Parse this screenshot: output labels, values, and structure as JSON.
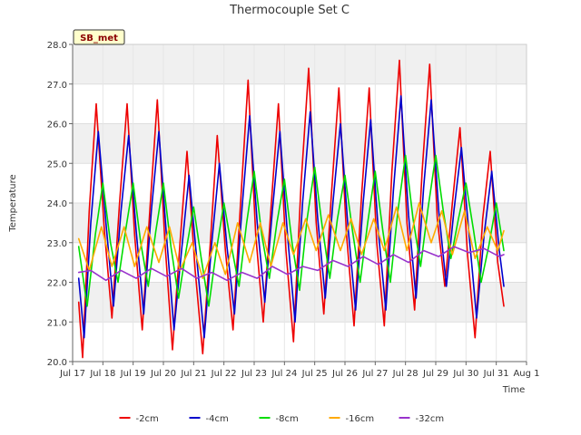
{
  "chart_data": {
    "type": "line",
    "title": "Thermocouple Set C",
    "xlabel": "Time",
    "ylabel": "Temperature",
    "badge": "SB_met",
    "xlim": [
      0,
      15
    ],
    "ylim": [
      20.0,
      28.0
    ],
    "x_ticks": [
      {
        "x": 0,
        "label": "Jul 17"
      },
      {
        "x": 1,
        "label": "Jul 18"
      },
      {
        "x": 2,
        "label": "Jul 19"
      },
      {
        "x": 3,
        "label": "Jul 20"
      },
      {
        "x": 4,
        "label": "Jul 21"
      },
      {
        "x": 5,
        "label": "Jul 22"
      },
      {
        "x": 6,
        "label": "Jul 23"
      },
      {
        "x": 7,
        "label": "Jul 24"
      },
      {
        "x": 8,
        "label": "Jul 25"
      },
      {
        "x": 9,
        "label": "Jul 26"
      },
      {
        "x": 10,
        "label": "Jul 27"
      },
      {
        "x": 11,
        "label": "Jul 28"
      },
      {
        "x": 12,
        "label": "Jul 29"
      },
      {
        "x": 13,
        "label": "Jul 30"
      },
      {
        "x": 14,
        "label": "Jul 31"
      },
      {
        "x": 15,
        "label": "Aug 1"
      }
    ],
    "y_ticks": [
      {
        "y": 20.0,
        "label": "20.0"
      },
      {
        "y": 21.0,
        "label": "21.0"
      },
      {
        "y": 22.0,
        "label": "22.0"
      },
      {
        "y": 23.0,
        "label": "23.0"
      },
      {
        "y": 24.0,
        "label": "24.0"
      },
      {
        "y": 25.0,
        "label": "25.0"
      },
      {
        "y": 26.0,
        "label": "26.0"
      },
      {
        "y": 27.0,
        "label": "27.0"
      },
      {
        "y": 28.0,
        "label": "28.0"
      }
    ],
    "grid": true,
    "legend_position": "bottom",
    "series": [
      {
        "name": "-2cm",
        "color": "#ee0000",
        "x": [
          0.2,
          0.33,
          0.55,
          0.78,
          1.05,
          1.3,
          1.55,
          1.8,
          2.05,
          2.3,
          2.55,
          2.8,
          3.05,
          3.3,
          3.55,
          3.78,
          4.05,
          4.3,
          4.55,
          4.78,
          5.05,
          5.3,
          5.55,
          5.8,
          6.05,
          6.3,
          6.55,
          6.8,
          7.05,
          7.3,
          7.55,
          7.8,
          8.05,
          8.3,
          8.55,
          8.8,
          9.05,
          9.3,
          9.55,
          9.8,
          10.05,
          10.3,
          10.55,
          10.8,
          11.05,
          11.3,
          11.55,
          11.8,
          12.05,
          12.3,
          12.55,
          12.8,
          13.05,
          13.3,
          13.55,
          13.8,
          14.05,
          14.25
        ],
        "y": [
          21.5,
          20.1,
          23.8,
          26.5,
          23.3,
          21.1,
          24.0,
          26.5,
          23.2,
          20.8,
          23.8,
          26.6,
          23.0,
          20.3,
          23.0,
          25.3,
          22.3,
          20.2,
          23.0,
          25.7,
          22.8,
          20.8,
          24.0,
          27.1,
          23.2,
          21.0,
          23.8,
          26.5,
          22.8,
          20.5,
          24.5,
          27.4,
          23.5,
          21.2,
          24.2,
          26.9,
          23.2,
          20.9,
          24.2,
          26.9,
          23.0,
          20.9,
          24.8,
          27.6,
          23.5,
          21.3,
          24.8,
          27.5,
          23.6,
          21.9,
          24.0,
          25.9,
          22.7,
          20.6,
          23.6,
          25.3,
          22.5,
          21.4
        ]
      },
      {
        "name": "-4cm",
        "color": "#0000cc",
        "x": [
          0.2,
          0.38,
          0.6,
          0.85,
          1.1,
          1.35,
          1.6,
          1.85,
          2.1,
          2.35,
          2.6,
          2.85,
          3.1,
          3.35,
          3.6,
          3.85,
          4.1,
          4.35,
          4.6,
          4.85,
          5.1,
          5.35,
          5.6,
          5.85,
          6.1,
          6.35,
          6.6,
          6.85,
          7.1,
          7.35,
          7.6,
          7.85,
          8.1,
          8.35,
          8.6,
          8.85,
          9.1,
          9.35,
          9.6,
          9.85,
          10.1,
          10.35,
          10.6,
          10.85,
          11.1,
          11.35,
          11.6,
          11.85,
          12.1,
          12.35,
          12.6,
          12.85,
          13.1,
          13.35,
          13.6,
          13.85,
          14.1,
          14.25
        ],
        "y": [
          22.1,
          20.6,
          23.5,
          25.8,
          23.5,
          21.4,
          23.8,
          25.7,
          23.3,
          21.2,
          23.8,
          25.8,
          23.2,
          20.8,
          22.8,
          24.7,
          22.6,
          20.6,
          23.0,
          25.0,
          22.9,
          21.2,
          23.9,
          26.2,
          23.5,
          21.5,
          23.8,
          25.8,
          23.2,
          21.0,
          24.0,
          26.3,
          23.6,
          21.6,
          24.0,
          26.0,
          23.4,
          21.3,
          24.0,
          26.1,
          23.3,
          21.3,
          24.3,
          26.7,
          23.7,
          21.6,
          24.4,
          26.6,
          23.8,
          21.9,
          23.8,
          25.4,
          23.2,
          21.1,
          23.2,
          24.8,
          22.8,
          21.9
        ]
      },
      {
        "name": "-8cm",
        "color": "#00dd00",
        "x": [
          0.2,
          0.48,
          0.75,
          1.0,
          1.25,
          1.5,
          1.75,
          2.0,
          2.25,
          2.5,
          2.75,
          3.0,
          3.25,
          3.5,
          3.75,
          4.0,
          4.25,
          4.5,
          4.75,
          5.0,
          5.25,
          5.5,
          5.75,
          6.0,
          6.25,
          6.5,
          6.75,
          7.0,
          7.25,
          7.5,
          7.75,
          8.0,
          8.25,
          8.5,
          8.75,
          9.0,
          9.25,
          9.5,
          9.75,
          10.0,
          10.25,
          10.5,
          10.75,
          11.0,
          11.25,
          11.5,
          11.75,
          12.0,
          12.25,
          12.5,
          12.75,
          13.0,
          13.25,
          13.5,
          13.75,
          14.0,
          14.25
        ],
        "y": [
          22.9,
          21.4,
          23.2,
          24.5,
          23.0,
          22.0,
          23.3,
          24.5,
          23.0,
          21.9,
          23.3,
          24.5,
          22.9,
          21.6,
          22.8,
          23.9,
          22.6,
          21.4,
          22.8,
          24.0,
          22.9,
          21.9,
          23.5,
          24.8,
          23.2,
          22.1,
          23.5,
          24.6,
          23.0,
          21.8,
          23.6,
          24.9,
          23.4,
          22.1,
          23.6,
          24.7,
          23.3,
          22.0,
          23.5,
          24.8,
          23.3,
          22.0,
          23.8,
          25.2,
          23.6,
          22.4,
          23.9,
          25.2,
          23.8,
          22.6,
          23.6,
          24.5,
          23.3,
          22.0,
          22.9,
          24.0,
          22.8
        ]
      },
      {
        "name": "-16cm",
        "color": "#ffaa00",
        "x": [
          0.2,
          0.55,
          0.95,
          1.3,
          1.7,
          2.05,
          2.45,
          2.85,
          3.2,
          3.55,
          3.95,
          4.3,
          4.7,
          5.05,
          5.45,
          5.85,
          6.2,
          6.55,
          6.95,
          7.3,
          7.7,
          8.05,
          8.45,
          8.85,
          9.2,
          9.55,
          9.95,
          10.3,
          10.7,
          11.05,
          11.45,
          11.85,
          12.2,
          12.55,
          12.95,
          13.3,
          13.7,
          14.05,
          14.25
        ],
        "y": [
          23.1,
          22.3,
          23.4,
          22.4,
          23.4,
          22.4,
          23.4,
          22.5,
          23.4,
          22.3,
          23.0,
          22.1,
          23.0,
          22.2,
          23.5,
          22.5,
          23.5,
          22.4,
          23.5,
          22.7,
          23.6,
          22.8,
          23.7,
          22.8,
          23.6,
          22.7,
          23.6,
          22.8,
          23.9,
          22.8,
          24.0,
          23.0,
          23.8,
          22.7,
          23.8,
          22.6,
          23.4,
          22.8,
          23.3
        ]
      },
      {
        "name": "-32cm",
        "color": "#9933cc",
        "x": [
          0.2,
          0.6,
          1.1,
          1.6,
          2.1,
          2.6,
          3.1,
          3.6,
          4.1,
          4.6,
          5.1,
          5.6,
          6.1,
          6.6,
          7.1,
          7.6,
          8.1,
          8.6,
          9.1,
          9.6,
          10.1,
          10.6,
          11.1,
          11.6,
          12.1,
          12.6,
          13.1,
          13.6,
          14.1,
          14.25
        ],
        "y": [
          22.25,
          22.3,
          22.05,
          22.3,
          22.1,
          22.35,
          22.15,
          22.35,
          22.1,
          22.25,
          22.05,
          22.25,
          22.1,
          22.4,
          22.2,
          22.4,
          22.3,
          22.55,
          22.4,
          22.65,
          22.45,
          22.7,
          22.5,
          22.8,
          22.65,
          22.9,
          22.75,
          22.85,
          22.65,
          22.7
        ]
      }
    ]
  }
}
